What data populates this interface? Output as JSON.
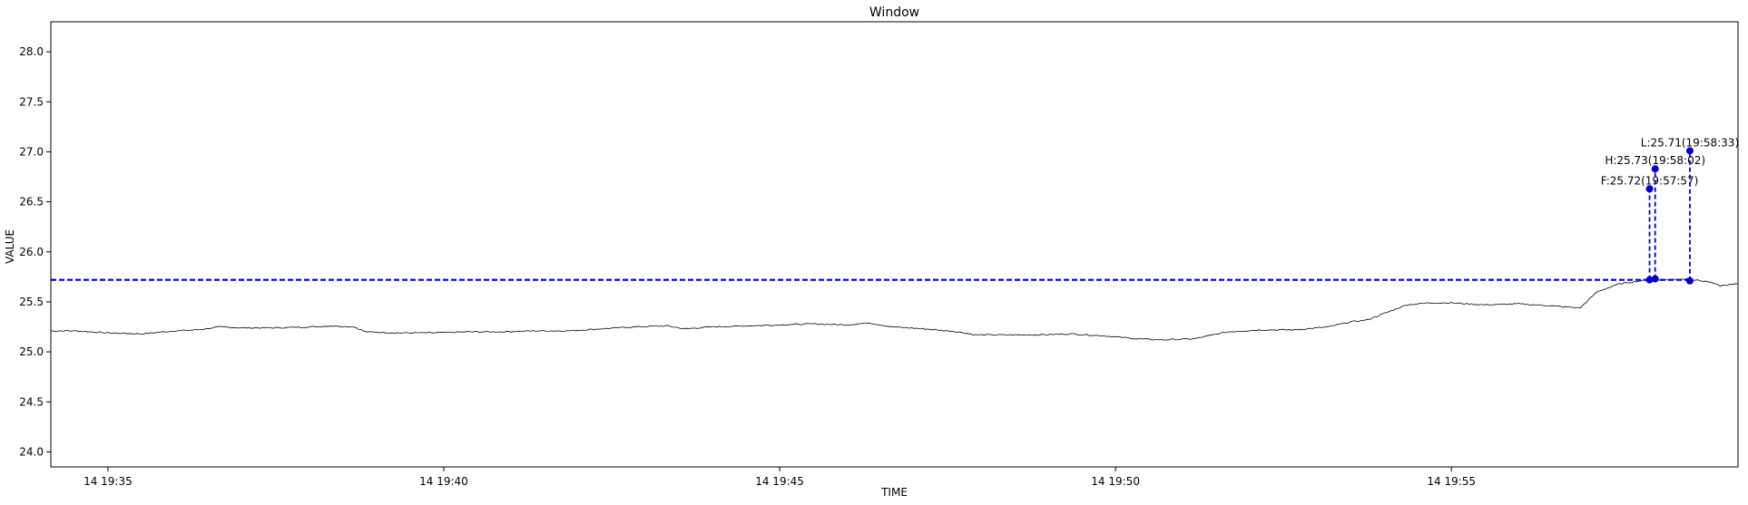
{
  "chart_data": {
    "type": "line",
    "title": "Window",
    "xlabel": "TIME",
    "ylabel": "VALUE",
    "ylim": [
      23.85,
      28.3
    ],
    "xlim": [
      "14 19:34:09",
      "14 19:59:16"
    ],
    "grid": false,
    "y_ticks": [
      24.0,
      24.5,
      25.0,
      25.5,
      26.0,
      26.5,
      27.0,
      27.5,
      28.0
    ],
    "y_tick_labels": [
      "24.0",
      "24.5",
      "25.0",
      "25.5",
      "26.0",
      "26.5",
      "27.0",
      "27.5",
      "28.0"
    ],
    "x_ticks": [
      "14 19:35:00",
      "14 19:40:00",
      "14 19:45:00",
      "14 19:50:00",
      "14 19:55:00"
    ],
    "x_tick_labels": [
      "14 19:35",
      "14 19:40",
      "14 19:45",
      "14 19:50",
      "14 19:55"
    ],
    "colors": {
      "series": "#000000",
      "markers": "#0000cc"
    },
    "series": [
      {
        "line_color": "#000000",
        "x": [
          "14 19:34:09",
          "14 19:34:30",
          "14 19:35:00",
          "14 19:35:30",
          "14 19:36:00",
          "14 19:36:20",
          "14 19:36:40",
          "14 19:37:00",
          "14 19:37:30",
          "14 19:38:00",
          "14 19:38:20",
          "14 19:38:40",
          "14 19:38:50",
          "14 19:39:20",
          "14 19:39:50",
          "14 19:40:20",
          "14 19:40:50",
          "14 19:41:20",
          "14 19:41:50",
          "14 19:42:20",
          "14 19:42:50",
          "14 19:43:20",
          "14 19:43:35",
          "14 19:44:00",
          "14 19:44:30",
          "14 19:45:00",
          "14 19:45:30",
          "14 19:46:00",
          "14 19:46:20",
          "14 19:46:40",
          "14 19:47:10",
          "14 19:47:40",
          "14 19:47:55",
          "14 19:48:20",
          "14 19:48:50",
          "14 19:49:20",
          "14 19:49:50",
          "14 19:50:20",
          "14 19:50:40",
          "14 19:51:10",
          "14 19:51:40",
          "14 19:52:10",
          "14 19:52:40",
          "14 19:53:10",
          "14 19:53:30",
          "14 19:53:45",
          "14 19:54:20",
          "14 19:54:40",
          "14 19:55:00",
          "14 19:55:30",
          "14 19:56:00",
          "14 19:56:30",
          "14 19:56:40",
          "14 19:56:55",
          "14 19:57:10",
          "14 19:57:30",
          "14 19:57:55",
          "14 19:58:10",
          "14 19:58:30",
          "14 19:58:50",
          "14 19:59:00",
          "14 19:59:16"
        ],
        "y": [
          25.21,
          25.21,
          25.19,
          25.18,
          25.21,
          25.22,
          25.25,
          25.24,
          25.24,
          25.25,
          25.26,
          25.25,
          25.2,
          25.19,
          25.19,
          25.2,
          25.2,
          25.21,
          25.21,
          25.23,
          25.25,
          25.26,
          25.23,
          25.25,
          25.26,
          25.27,
          25.28,
          25.27,
          25.29,
          25.25,
          25.23,
          25.2,
          25.17,
          25.17,
          25.17,
          25.18,
          25.16,
          25.13,
          25.12,
          25.13,
          25.2,
          25.22,
          25.22,
          25.25,
          25.3,
          25.32,
          25.47,
          25.49,
          25.49,
          25.47,
          25.48,
          25.46,
          25.45,
          25.44,
          25.6,
          25.68,
          25.72,
          25.72,
          25.73,
          25.7,
          25.66,
          25.68
        ]
      }
    ],
    "reference_line": {
      "y": 25.72,
      "style": "dashed",
      "color": "#0000cc"
    },
    "annotations": [
      {
        "label": "F:25.72(19:57:57)",
        "x": "14 19:57:57",
        "y_base": 25.72,
        "y_marker": 26.63
      },
      {
        "label": "H:25.73(19:58:02)",
        "x": "14 19:58:02",
        "y_base": 25.73,
        "y_marker": 26.83
      },
      {
        "label": "L:25.71(19:58:33)",
        "x": "14 19:58:33",
        "y_base": 25.71,
        "y_marker": 27.01
      }
    ]
  }
}
